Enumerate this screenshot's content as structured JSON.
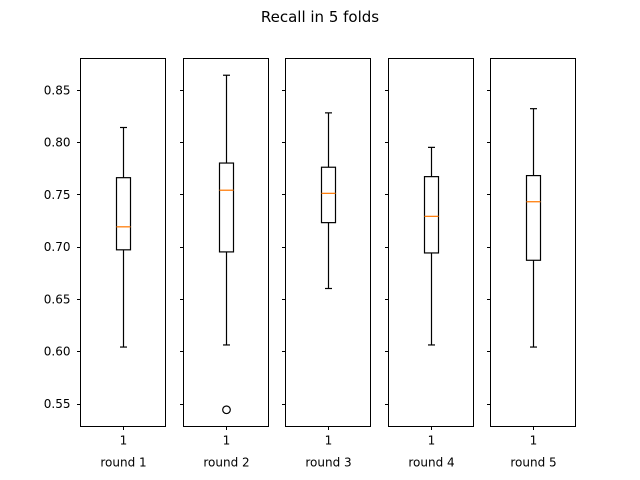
{
  "chart_data": {
    "type": "box",
    "title": "Recall in 5 folds",
    "sharey": true,
    "ylim": [
      0.528,
      0.88
    ],
    "yticks": [
      0.55,
      0.6,
      0.65,
      0.7,
      0.75,
      0.8,
      0.85
    ],
    "ytick_labels": [
      "0.55",
      "0.60",
      "0.65",
      "0.70",
      "0.75",
      "0.80",
      "0.85"
    ],
    "xtick_label": "1",
    "colors": {
      "box": "#000000",
      "median": "#ff7f0e",
      "flier": "#000000"
    },
    "panels": [
      {
        "xlabel": "round 1",
        "whisker_low": 0.604,
        "q1": 0.697,
        "median": 0.719,
        "q3": 0.766,
        "whisker_high": 0.814,
        "outliers": []
      },
      {
        "xlabel": "round 2",
        "whisker_low": 0.606,
        "q1": 0.695,
        "median": 0.754,
        "q3": 0.78,
        "whisker_high": 0.864,
        "outliers": [
          0.544
        ]
      },
      {
        "xlabel": "round 3",
        "whisker_low": 0.66,
        "q1": 0.723,
        "median": 0.751,
        "q3": 0.776,
        "whisker_high": 0.828,
        "outliers": []
      },
      {
        "xlabel": "round 4",
        "whisker_low": 0.606,
        "q1": 0.694,
        "median": 0.729,
        "q3": 0.767,
        "whisker_high": 0.795,
        "outliers": []
      },
      {
        "xlabel": "round 5",
        "whisker_low": 0.604,
        "q1": 0.687,
        "median": 0.743,
        "q3": 0.768,
        "whisker_high": 0.832,
        "outliers": []
      }
    ]
  }
}
